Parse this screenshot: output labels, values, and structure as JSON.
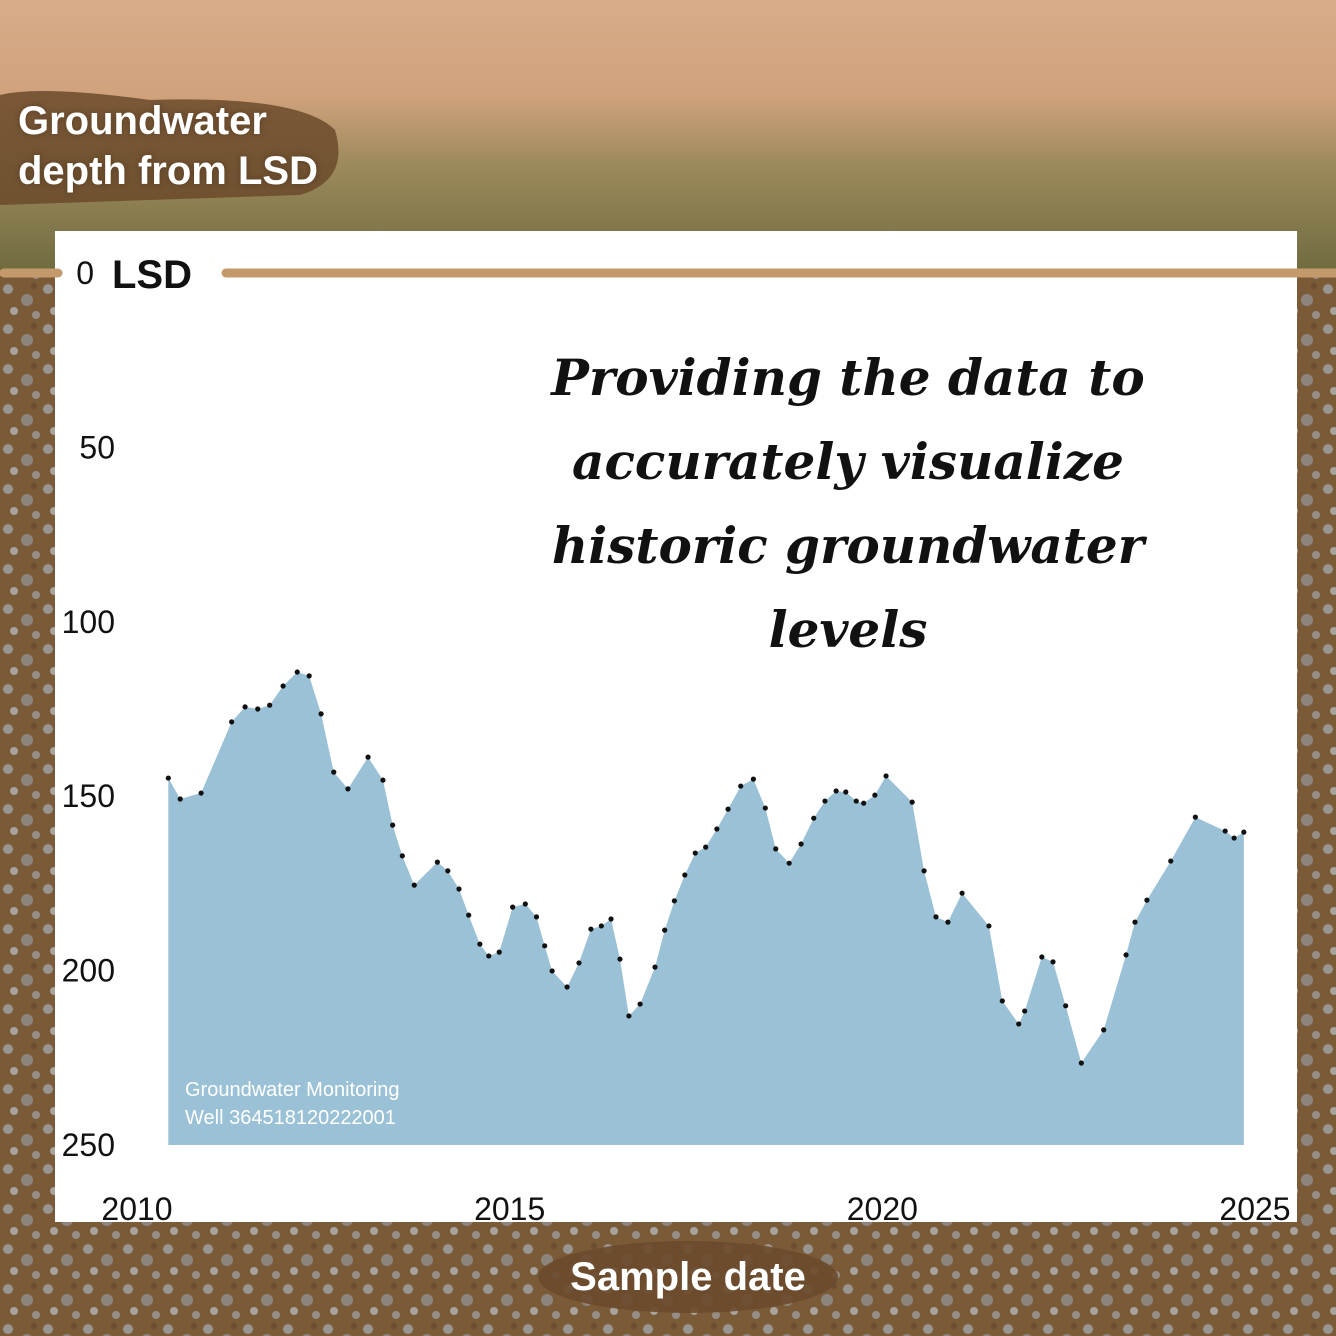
{
  "chart_data": {
    "type": "area",
    "y_label": "Groundwater depth from LSD",
    "x_label": "Sample date",
    "zero_label": "LSD",
    "annotation": "Providing the data to accurately visualize historic groundwater levels",
    "note": "Groundwater Monitoring Well 364518120222001",
    "color": "#9ac1d6",
    "marker_color": "#111111",
    "y_inverted": true,
    "xlim": [
      2010,
      2025
    ],
    "xticks": [
      2010,
      2015,
      2020,
      2025
    ],
    "ylim": [
      0,
      250
    ],
    "yticks": [
      0,
      50,
      100,
      150,
      200,
      250
    ],
    "x": [
      2010.42,
      2010.58,
      2010.86,
      2011.27,
      2011.45,
      2011.62,
      2011.78,
      2011.96,
      2012.15,
      2012.31,
      2012.47,
      2012.64,
      2012.83,
      2013.1,
      2013.3,
      2013.43,
      2013.56,
      2013.72,
      2014.03,
      2014.17,
      2014.32,
      2014.45,
      2014.6,
      2014.72,
      2014.86,
      2015.04,
      2015.21,
      2015.36,
      2015.47,
      2015.57,
      2015.77,
      2015.93,
      2016.09,
      2016.23,
      2016.36,
      2016.48,
      2016.6,
      2016.75,
      2016.95,
      2017.08,
      2017.21,
      2017.35,
      2017.49,
      2017.63,
      2017.78,
      2017.93,
      2018.1,
      2018.27,
      2018.43,
      2018.57,
      2018.75,
      2018.91,
      2019.08,
      2019.23,
      2019.38,
      2019.51,
      2019.65,
      2019.75,
      2019.9,
      2020.05,
      2020.4,
      2020.56,
      2020.72,
      2020.88,
      2021.07,
      2021.43,
      2021.61,
      2021.83,
      2021.91,
      2022.14,
      2022.29,
      2022.46,
      2022.67,
      2022.97,
      2023.27,
      2023.39,
      2023.55,
      2023.87,
      2024.2,
      2024.6,
      2024.72,
      2024.85
    ],
    "values": [
      144.8,
      150.8,
      149.1,
      128.7,
      124.4,
      125.0,
      123.9,
      118.4,
      114.4,
      115.5,
      126.4,
      143.1,
      147.9,
      138.8,
      145.4,
      158.3,
      167.1,
      175.5,
      168.9,
      171.4,
      176.6,
      184.1,
      192.4,
      195.8,
      194.7,
      181.8,
      180.9,
      184.6,
      192.9,
      200.1,
      204.7,
      197.8,
      188.1,
      187.2,
      185.2,
      196.7,
      213.0,
      209.6,
      199.0,
      188.4,
      180.0,
      172.6,
      166.3,
      164.6,
      159.4,
      153.7,
      147.1,
      145.1,
      153.4,
      165.1,
      169.2,
      163.7,
      156.3,
      151.4,
      148.5,
      148.8,
      151.4,
      152.0,
      149.7,
      144.2,
      151.7,
      171.4,
      184.6,
      186.1,
      177.8,
      187.2,
      208.7,
      215.3,
      211.6,
      196.1,
      197.5,
      210.1,
      226.5,
      217.0,
      195.5,
      186.1,
      179.8,
      168.6,
      156.0,
      160.0,
      162.0,
      160.3
    ]
  }
}
